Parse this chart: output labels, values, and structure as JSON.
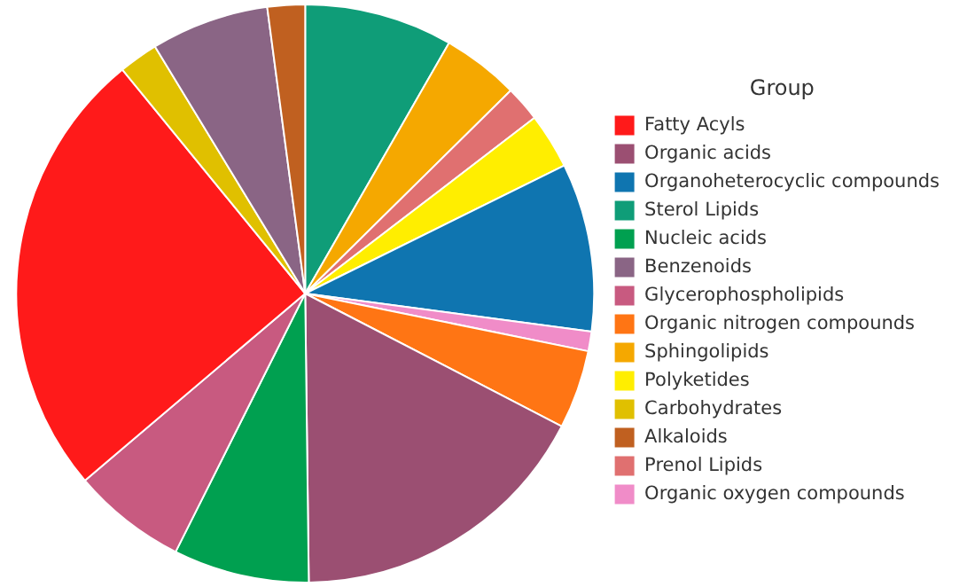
{
  "chart_data": {
    "type": "pie",
    "legend_title": "Group",
    "legend": "right",
    "categories": [
      "Sterol Lipids",
      "Sphingolipids",
      "Prenol Lipids",
      "Polyketides",
      "Organoheterocyclic compounds",
      "Organic oxygen compounds",
      "Organic nitrogen compounds",
      "Organic acids",
      "Nucleic acids",
      "Glycerophospholipids",
      "Fatty Acyls",
      "Carbohydrates",
      "Benzenoids",
      "Alkaloids"
    ],
    "values": [
      8.3,
      4.3,
      2.0,
      3.1,
      9.4,
      1.1,
      4.4,
      17.2,
      7.6,
      6.4,
      25.3,
      2.2,
      6.6,
      2.1
    ],
    "colors": [
      "#0f9d78",
      "#f5a800",
      "#e07070",
      "#ffee00",
      "#0f75b0",
      "#f08cc8",
      "#ff7514",
      "#9b4f72",
      "#00a050",
      "#c85a80",
      "#ff1a1a",
      "#e0c000",
      "#8a6585",
      "#c06020"
    ]
  }
}
